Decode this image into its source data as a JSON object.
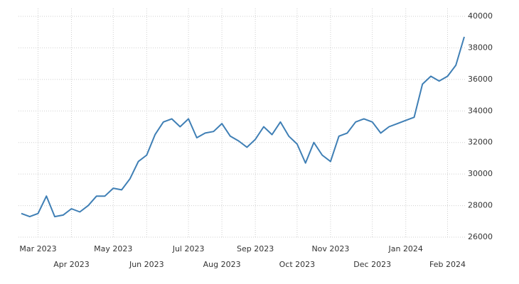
{
  "chart_data": {
    "type": "line",
    "categories": [
      null,
      null,
      "Mar 2023",
      null,
      null,
      null,
      "Apr 2023",
      null,
      null,
      null,
      null,
      "May 2023",
      null,
      null,
      null,
      "Jun 2023",
      null,
      null,
      null,
      null,
      "Jul 2023",
      null,
      null,
      null,
      "Aug 2023",
      null,
      null,
      null,
      "Sep 2023",
      null,
      null,
      null,
      null,
      "Oct 2023",
      null,
      null,
      null,
      "Nov 2023",
      null,
      null,
      null,
      null,
      "Dec 2023",
      null,
      null,
      null,
      "Jan 2024",
      null,
      null,
      null,
      null,
      "Feb 2024",
      null,
      null
    ],
    "values": [
      27500,
      27300,
      27500,
      28600,
      27300,
      27400,
      27800,
      27600,
      28000,
      28600,
      28600,
      29100,
      29000,
      29700,
      30800,
      31200,
      32500,
      33300,
      33500,
      33000,
      33500,
      32300,
      32600,
      32700,
      33200,
      32400,
      32100,
      31700,
      32200,
      33000,
      32500,
      33300,
      32400,
      31900,
      30700,
      32000,
      31200,
      30800,
      32400,
      32600,
      33300,
      33500,
      33300,
      32600,
      33000,
      33200,
      33400,
      33600,
      35700,
      36200,
      35900,
      36200,
      36900,
      38700
    ],
    "color": "#3f7fb5",
    "ylim": [
      26000,
      40000
    ],
    "yticks": [
      26000,
      28000,
      30000,
      32000,
      34000,
      36000,
      38000,
      40000
    ],
    "grid": true
  }
}
